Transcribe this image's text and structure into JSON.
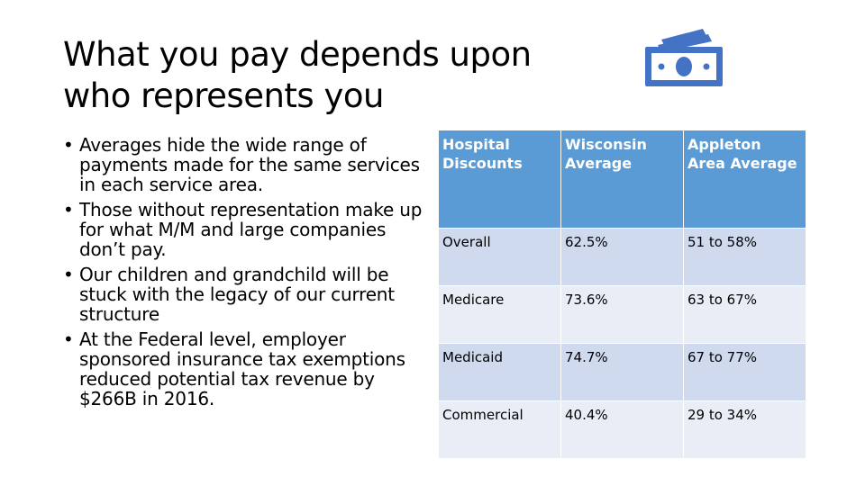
{
  "slide": {
    "title": "What you pay depends upon who represents you",
    "icon": "money-bills-icon",
    "accent_color": "#4472c4"
  },
  "bullets": [
    "Averages hide the wide range of payments made for the same services in each service area.",
    "Those without representation make up for what M/M and large companies don’t pay.",
    "Our children and grandchild will be stuck with the legacy of our current structure",
    "At the Federal level, employer sponsored insurance tax exemptions reduced potential tax revenue by $266B in 2016."
  ],
  "table": {
    "header_color": "#5b9bd5",
    "headers": [
      "Hospital Discounts",
      "Wisconsin Average",
      "Appleton Area Average"
    ],
    "rows": [
      [
        "Overall",
        "62.5%",
        "51 to 58%"
      ],
      [
        "Medicare",
        "73.6%",
        "63 to 67%"
      ],
      [
        "Medicaid",
        "74.7%",
        "67 to 77%"
      ],
      [
        "Commercial",
        "40.4%",
        "29 to 34%"
      ]
    ]
  }
}
